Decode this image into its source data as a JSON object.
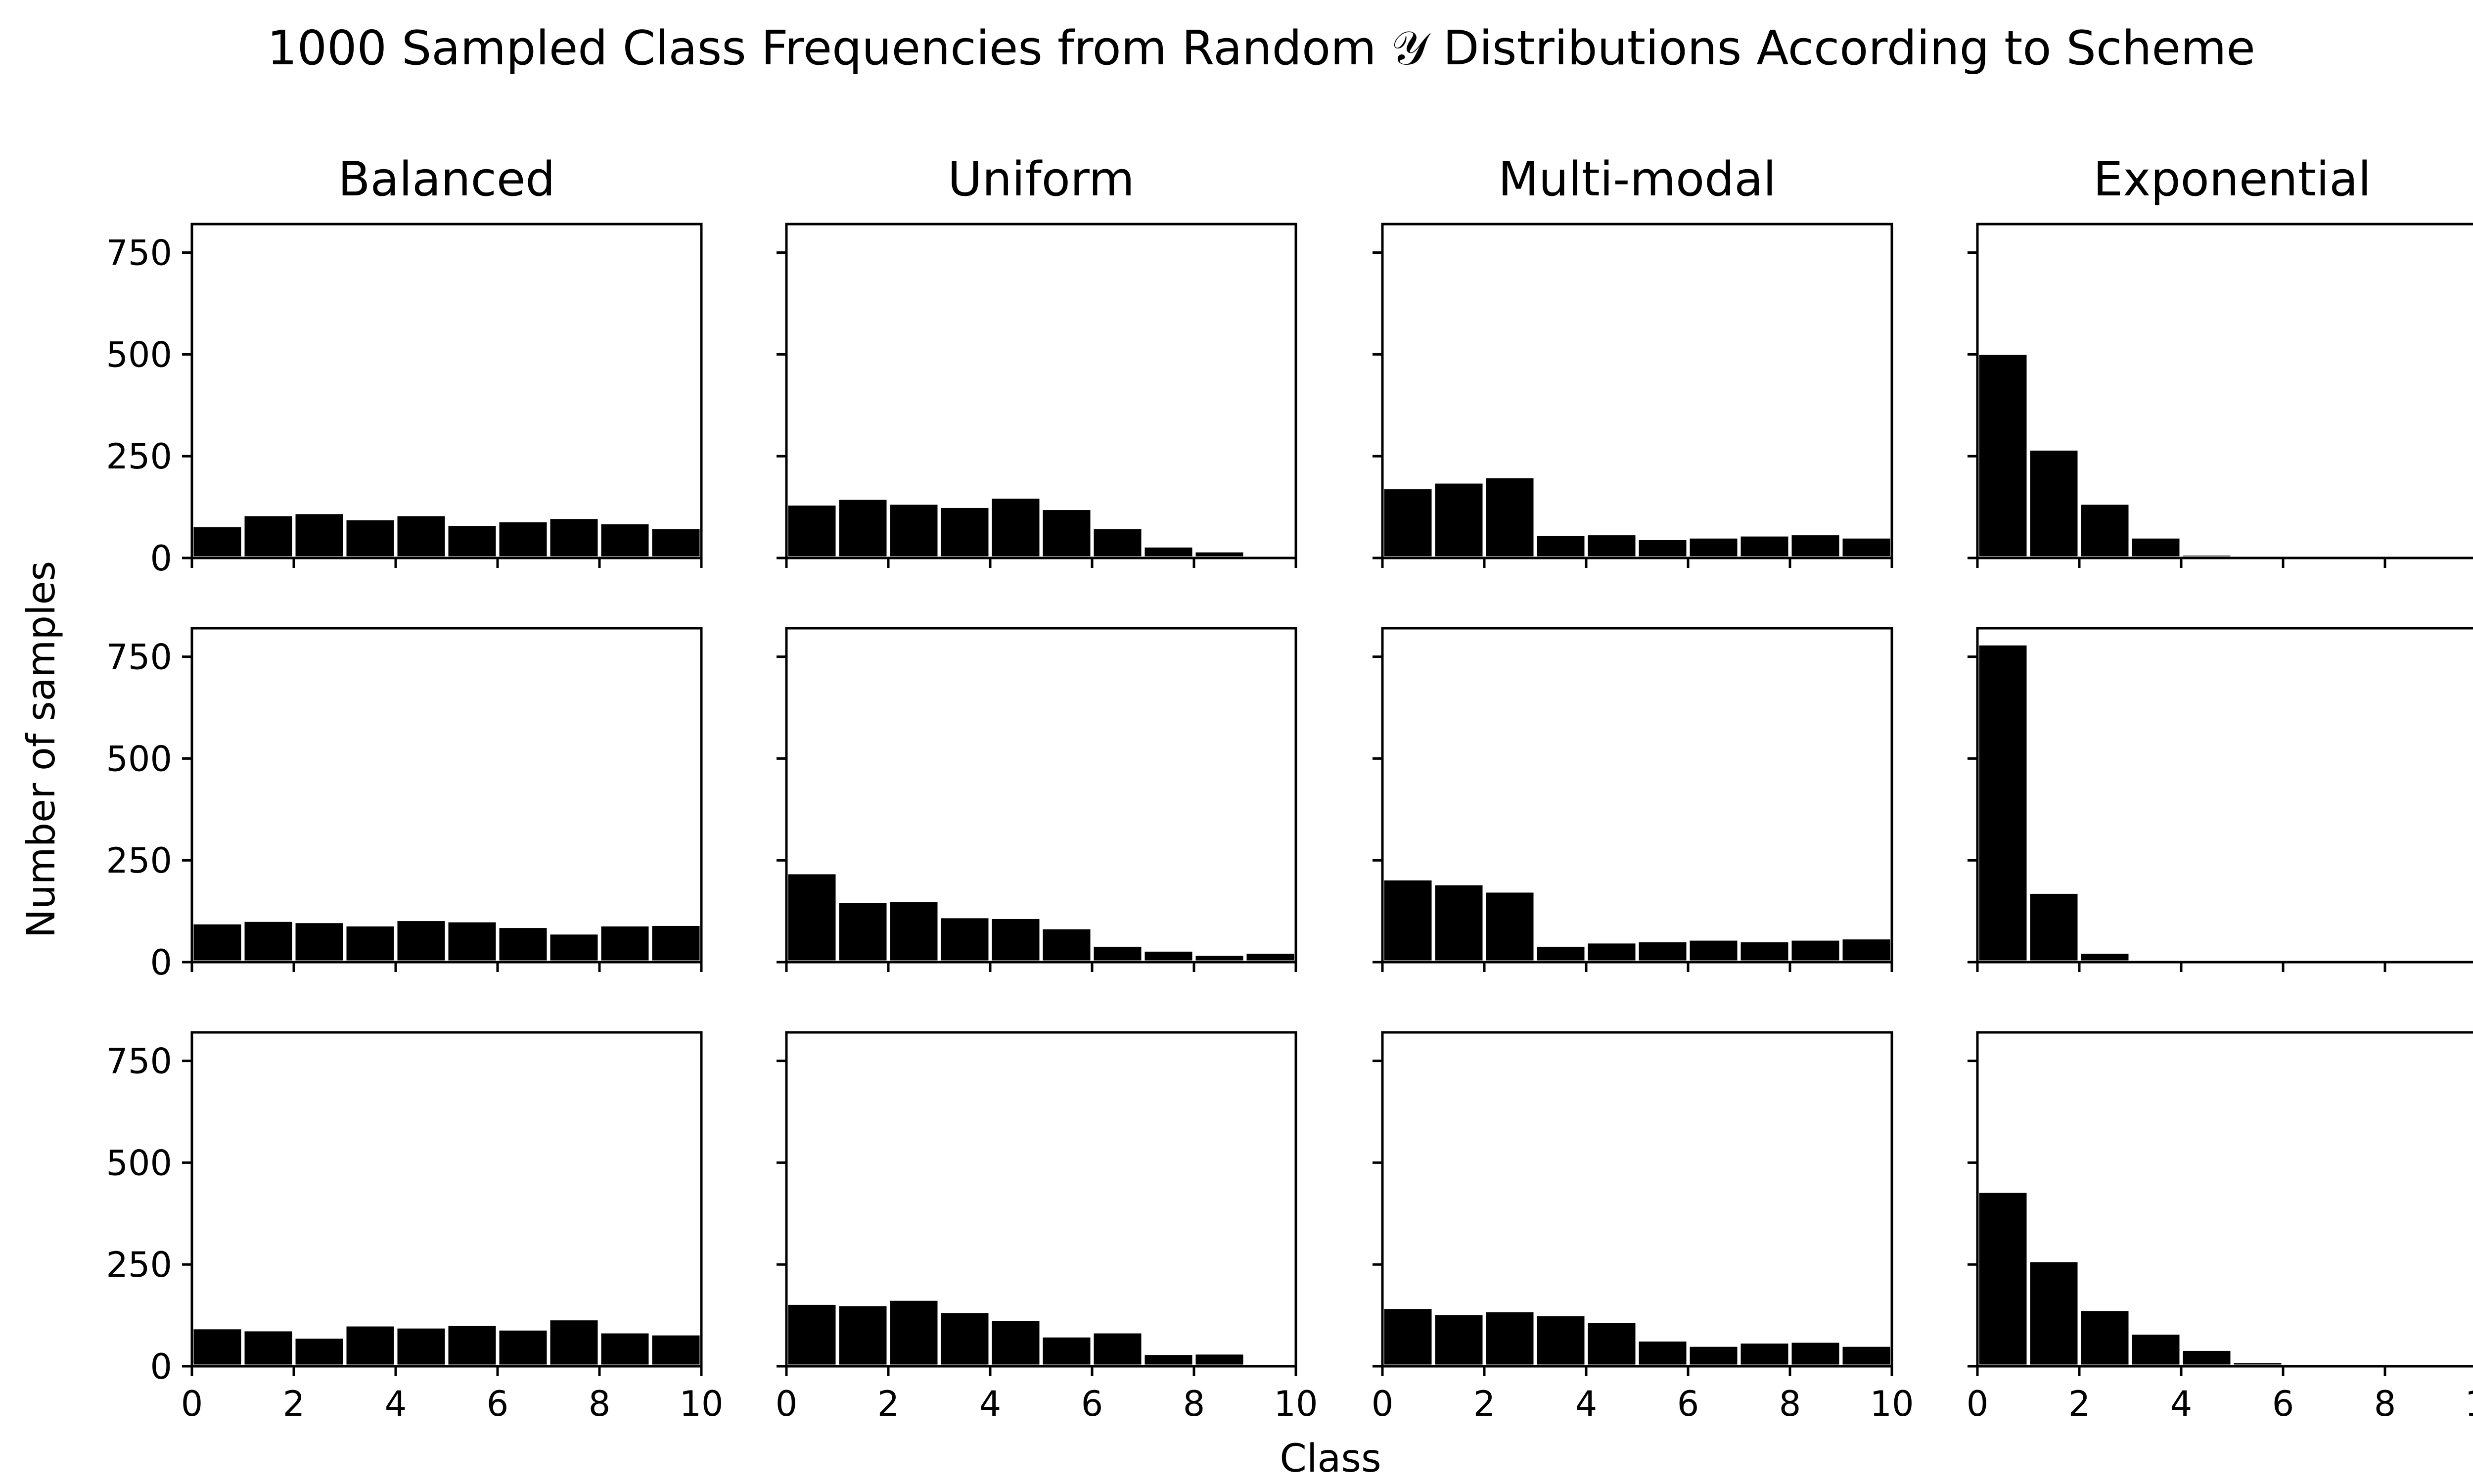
{
  "title": "1000 Sampled Class Frequencies from Random 𝒴 Distributions According to Scheme",
  "xlabel": "Class",
  "ylabel": "Number of samples",
  "colors": {
    "bar": "#000000",
    "bar_edge": "#ffffff",
    "axes": "#000000",
    "background": "#ffffff"
  },
  "chart_data": {
    "type": "bar",
    "layout": "grid 3 rows x 4 columns, shared axes",
    "columns": [
      "Balanced",
      "Uniform",
      "Multi-modal",
      "Exponential"
    ],
    "xlim": [
      0,
      10
    ],
    "ylim": [
      0,
      820
    ],
    "x_ticks": [
      "0",
      "2",
      "4",
      "6",
      "8",
      "10"
    ],
    "y_ticks": [
      "0",
      "250",
      "500",
      "750"
    ],
    "categories": [
      0,
      1,
      2,
      3,
      4,
      5,
      6,
      7,
      8,
      9
    ],
    "grid": false,
    "panels": [
      {
        "column": "Balanced",
        "row": 1,
        "values": [
          80,
          107,
          112,
          97,
          107,
          83,
          92,
          100,
          87,
          75
        ]
      },
      {
        "column": "Uniform",
        "row": 1,
        "values": [
          133,
          147,
          135,
          127,
          150,
          122,
          75,
          30,
          18,
          0
        ]
      },
      {
        "column": "Multi-modal",
        "row": 1,
        "values": [
          173,
          187,
          200,
          58,
          60,
          48,
          52,
          57,
          60,
          52
        ]
      },
      {
        "column": "Exponential",
        "row": 1,
        "values": [
          503,
          268,
          135,
          52,
          10,
          0,
          0,
          0,
          0,
          0
        ]
      },
      {
        "column": "Balanced",
        "row": 2,
        "values": [
          97,
          103,
          100,
          92,
          105,
          102,
          88,
          72,
          92,
          93
        ]
      },
      {
        "column": "Uniform",
        "row": 2,
        "values": [
          220,
          150,
          152,
          112,
          110,
          85,
          42,
          30,
          20,
          25
        ]
      },
      {
        "column": "Multi-modal",
        "row": 2,
        "values": [
          205,
          193,
          175,
          42,
          50,
          53,
          57,
          53,
          57,
          60
        ]
      },
      {
        "column": "Exponential",
        "row": 2,
        "values": [
          782,
          172,
          25,
          0,
          0,
          0,
          0,
          0,
          0,
          0
        ]
      },
      {
        "column": "Balanced",
        "row": 3,
        "values": [
          95,
          90,
          72,
          102,
          97,
          103,
          92,
          117,
          85,
          80
        ]
      },
      {
        "column": "Uniform",
        "row": 3,
        "values": [
          155,
          152,
          165,
          135,
          115,
          75,
          85,
          32,
          33,
          0
        ]
      },
      {
        "column": "Multi-modal",
        "row": 3,
        "values": [
          145,
          130,
          137,
          127,
          110,
          65,
          52,
          60,
          62,
          52
        ]
      },
      {
        "column": "Exponential",
        "row": 3,
        "values": [
          430,
          260,
          140,
          82,
          42,
          12,
          0,
          0,
          0,
          0
        ]
      }
    ]
  }
}
